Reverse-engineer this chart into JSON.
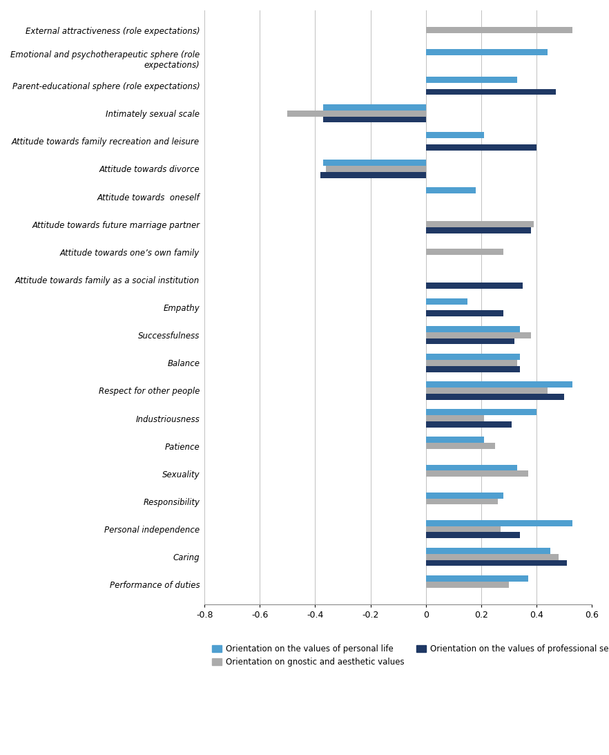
{
  "categories": [
    "Performance of duties",
    "Caring",
    "Personal independence",
    "Responsibility",
    "Sexuality",
    "Patience",
    "Industriousness",
    "Respect for other people",
    "Balance",
    "Successfulness",
    "Empathy",
    "Attitude towards family as a social institution",
    "Attitude towards one’s own family",
    "Attitude towards future marriage partner",
    "Attitude towards  oneself",
    "Attitude towards divorce",
    "Attitude towards family recreation and leisure",
    "Intimately sexual scale",
    "Parent-educational sphere (role expectations)",
    "Emotional and psychotherapeutic sphere (role\nexpectations)",
    "External attractiveness (role expectations)"
  ],
  "series": {
    "personal_life": [
      0.37,
      0.45,
      0.53,
      0.28,
      0.33,
      0.21,
      0.4,
      0.53,
      0.34,
      0.34,
      0.15,
      0.0,
      0.0,
      0.0,
      0.18,
      -0.37,
      0.21,
      -0.37,
      0.33,
      0.44,
      0.0
    ],
    "gnostic": [
      0.3,
      0.48,
      0.27,
      0.26,
      0.37,
      0.25,
      0.21,
      0.44,
      0.33,
      0.38,
      0.0,
      0.0,
      0.28,
      0.39,
      0.0,
      -0.36,
      0.0,
      -0.5,
      0.0,
      0.0,
      0.53
    ],
    "professional": [
      0.0,
      0.51,
      0.34,
      0.0,
      0.0,
      0.0,
      0.31,
      0.5,
      0.34,
      0.32,
      0.28,
      0.35,
      0.0,
      0.38,
      0.0,
      -0.38,
      0.4,
      -0.37,
      0.47,
      0.0,
      0.0
    ]
  },
  "colors": {
    "personal_life": "#4F9FD0",
    "gnostic": "#ABABAB",
    "professional": "#1F3864"
  },
  "legend_labels": [
    "Orientation on the values of personal life",
    "Orientation on gnostic and aesthetic values",
    "Orientation on the values of professional self-realization"
  ],
  "xlim": [
    -0.8,
    0.6
  ],
  "xticks": [
    -0.8,
    -0.6,
    -0.4,
    -0.2,
    0.0,
    0.2,
    0.4,
    0.6
  ],
  "bar_height": 0.22,
  "background_color": "#FFFFFF"
}
